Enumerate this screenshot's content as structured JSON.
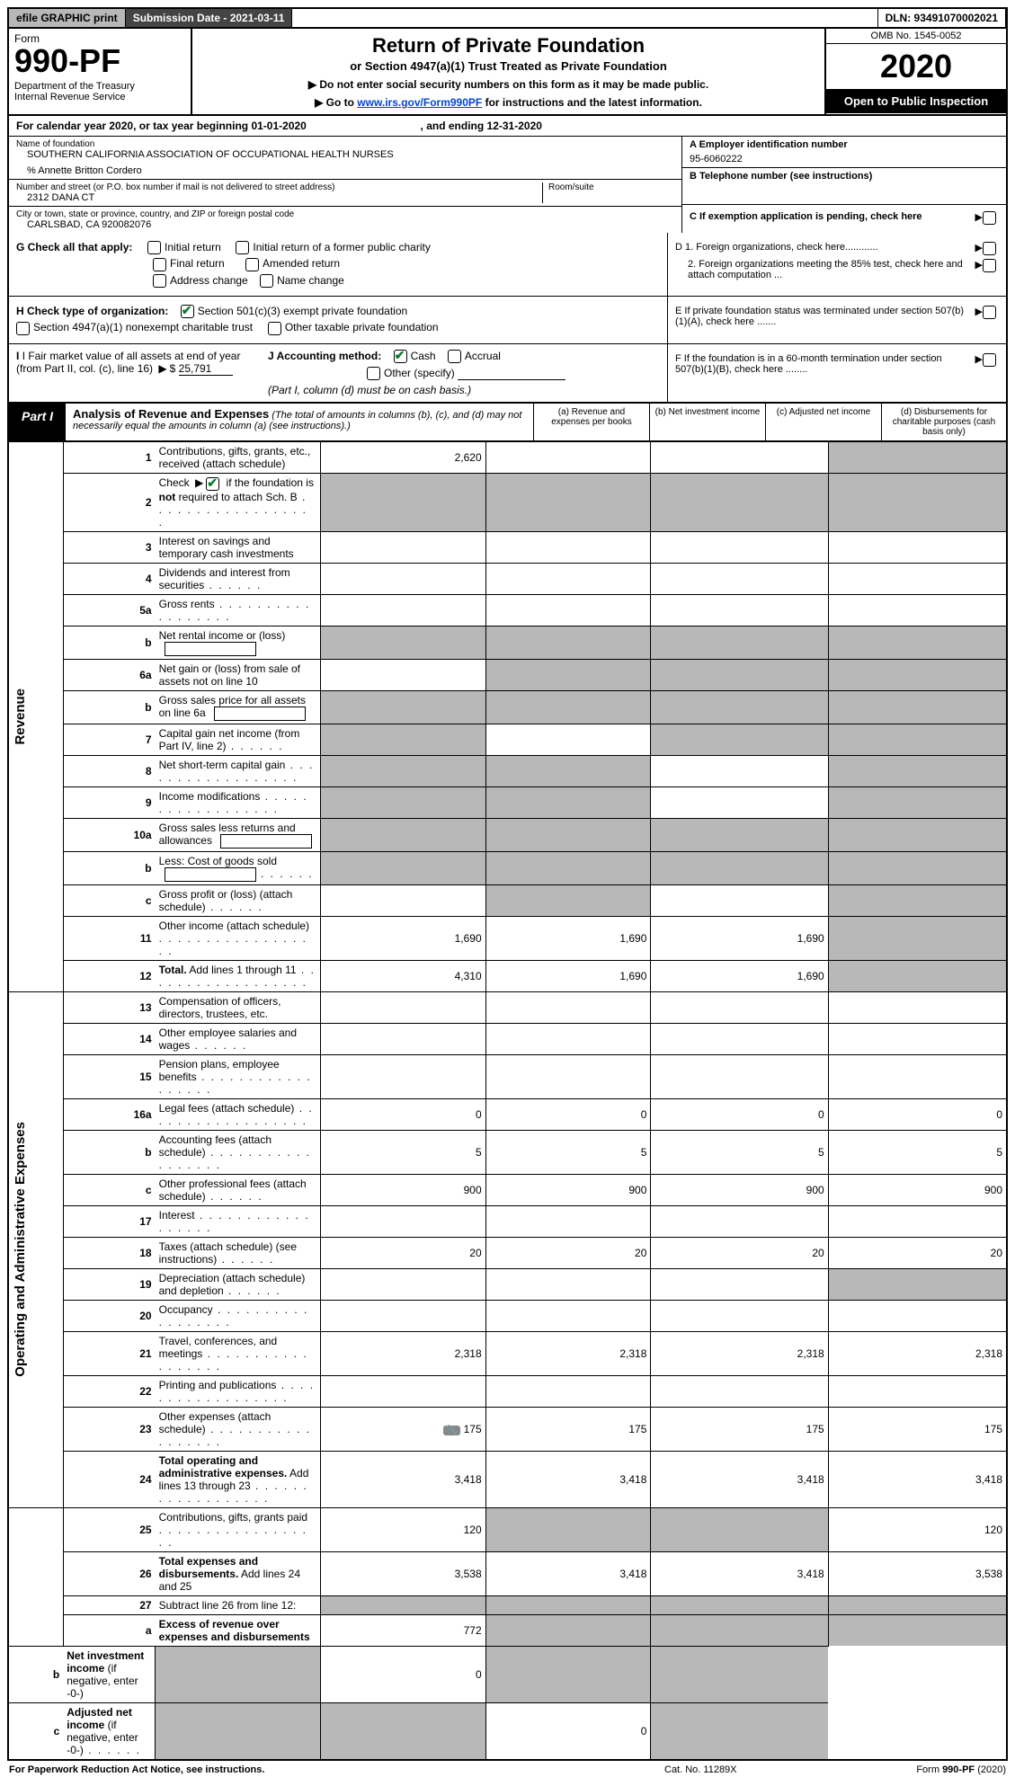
{
  "topbar": {
    "efile": "efile GRAPHIC print",
    "subdate_label": "Submission Date - 2021-03-11",
    "dln": "DLN: 93491070002021"
  },
  "header": {
    "form_word": "Form",
    "form_no": "990-PF",
    "dept": "Department of the Treasury\nInternal Revenue Service",
    "title": "Return of Private Foundation",
    "subtitle": "or Section 4947(a)(1) Trust Treated as Private Foundation",
    "note1": "▶ Do not enter social security numbers on this form as it may be made public.",
    "note2_pre": "▶ Go to ",
    "note2_link": "www.irs.gov/Form990PF",
    "note2_post": " for instructions and the latest information.",
    "omb": "OMB No. 1545-0052",
    "year": "2020",
    "open": "Open to Public Inspection"
  },
  "calyear": {
    "text_pre": "For calendar year 2020, or tax year beginning ",
    "begin": "01-01-2020",
    "text_mid": " , and ending ",
    "end": "12-31-2020"
  },
  "info": {
    "name_label": "Name of foundation",
    "name": "SOUTHERN CALIFORNIA ASSOCIATION OF OCCUPATIONAL HEALTH NURSES",
    "care_of": "% Annette Britton Cordero",
    "street_label": "Number and street (or P.O. box number if mail is not delivered to street address)",
    "street": "2312 DANA CT",
    "room_label": "Room/suite",
    "city_label": "City or town, state or province, country, and ZIP or foreign postal code",
    "city": "CARLSBAD, CA  920082076",
    "a_label": "A Employer identification number",
    "a_value": "95-6060222",
    "b_label": "B Telephone number (see instructions)",
    "c_label": "C If exemption application is pending, check here"
  },
  "g": {
    "label": "G Check all that apply:",
    "initial": "Initial return",
    "initial_former": "Initial return of a former public charity",
    "final": "Final return",
    "amended": "Amended return",
    "address": "Address change",
    "name": "Name change"
  },
  "d": {
    "d1": "D 1. Foreign organizations, check here............",
    "d2": "2. Foreign organizations meeting the 85% test, check here and attach computation ..."
  },
  "h": {
    "label": "H Check type of organization:",
    "opt1": "Section 501(c)(3) exempt private foundation",
    "opt2": "Section 4947(a)(1) nonexempt charitable trust",
    "opt3": "Other taxable private foundation"
  },
  "e": {
    "text": "E  If private foundation status was terminated under section 507(b)(1)(A), check here ......."
  },
  "i": {
    "label": "I Fair market value of all assets at end of year (from Part II, col. (c), line 16)",
    "arrow": "▶$",
    "value": "25,791"
  },
  "j": {
    "label": "J Accounting method:",
    "cash": "Cash",
    "accrual": "Accrual",
    "other": "Other (specify)",
    "note": "(Part I, column (d) must be on cash basis.)"
  },
  "f": {
    "text": "F  If the foundation is in a 60-month termination under section 507(b)(1)(B), check here ........"
  },
  "part1": {
    "tab": "Part I",
    "title": "Analysis of Revenue and Expenses",
    "title_note": "(The total of amounts in columns (b), (c), and (d) may not necessarily equal the amounts in column (a) (see instructions).)",
    "col_a": "(a)   Revenue and expenses per books",
    "col_b": "(b)  Net investment income",
    "col_c": "(c)  Adjusted net income",
    "col_d": "(d)  Disbursements for charitable purposes (cash basis only)"
  },
  "vlabels": {
    "revenue": "Revenue",
    "expenses": "Operating and Administrative Expenses"
  },
  "rows": [
    {
      "n": "1",
      "desc": "Contributions, gifts, grants, etc., received (attach schedule)",
      "a": "2,620",
      "d_shade": true
    },
    {
      "n": "2",
      "desc": "Check ▶ [✔] if the foundation is <b>not</b> required to attach Sch. B",
      "dots": true,
      "allshade": true,
      "checked": true
    },
    {
      "n": "3",
      "desc": "Interest on savings and temporary cash investments"
    },
    {
      "n": "4",
      "desc": "Dividends and interest from securities",
      "dots_short": true
    },
    {
      "n": "5a",
      "desc": "Gross rents",
      "dots": true
    },
    {
      "n": "b",
      "desc": "Net rental income or (loss)",
      "inner": true,
      "allshade": true
    },
    {
      "n": "6a",
      "desc": "Net gain or (loss) from sale of assets not on line 10",
      "bc_shade": true,
      "d_shade": true
    },
    {
      "n": "b",
      "desc": "Gross sales price for all assets on line 6a",
      "inner": true,
      "allshade": true
    },
    {
      "n": "7",
      "desc": "Capital gain net income (from Part IV, line 2)",
      "dots_short": true,
      "a_shade": true,
      "c_shade": true,
      "d_shade": true
    },
    {
      "n": "8",
      "desc": "Net short-term capital gain",
      "dots": true,
      "a_shade": true,
      "b_shade": true,
      "d_shade": true
    },
    {
      "n": "9",
      "desc": "Income modifications",
      "dots": true,
      "a_shade": true,
      "b_shade": true,
      "d_shade": true
    },
    {
      "n": "10a",
      "desc": "Gross sales less returns and allowances",
      "inner": true,
      "allshade": true
    },
    {
      "n": "b",
      "desc": "Less: Cost of goods sold",
      "dots_short": true,
      "inner": true,
      "allshade": true
    },
    {
      "n": "c",
      "desc": "Gross profit or (loss) (attach schedule)",
      "dots_short": true,
      "b_shade": true,
      "d_shade": true
    },
    {
      "n": "11",
      "desc": "Other income (attach schedule)",
      "dots": true,
      "a": "1,690",
      "b": "1,690",
      "c": "1,690",
      "d_shade": true
    },
    {
      "n": "12",
      "desc": "<b>Total.</b> Add lines 1 through 11",
      "dots": true,
      "a": "4,310",
      "b": "1,690",
      "c": "1,690",
      "d_shade": true
    },
    {
      "n": "13",
      "desc": "Compensation of officers, directors, trustees, etc."
    },
    {
      "n": "14",
      "desc": "Other employee salaries and wages",
      "dots_short": true
    },
    {
      "n": "15",
      "desc": "Pension plans, employee benefits",
      "dots": true
    },
    {
      "n": "16a",
      "desc": "Legal fees (attach schedule)",
      "dots": true,
      "a": "0",
      "b": "0",
      "c": "0",
      "d": "0"
    },
    {
      "n": "b",
      "desc": "Accounting fees (attach schedule)",
      "dots": true,
      "a": "5",
      "b": "5",
      "c": "5",
      "d": "5"
    },
    {
      "n": "c",
      "desc": "Other professional fees (attach schedule)",
      "dots_short": true,
      "a": "900",
      "b": "900",
      "c": "900",
      "d": "900"
    },
    {
      "n": "17",
      "desc": "Interest",
      "dots": true
    },
    {
      "n": "18",
      "desc": "Taxes (attach schedule) (see instructions)",
      "dots_short": true,
      "a": "20",
      "b": "20",
      "c": "20",
      "d": "20"
    },
    {
      "n": "19",
      "desc": "Depreciation (attach schedule) and depletion",
      "dots_short": true,
      "d_shade": true
    },
    {
      "n": "20",
      "desc": "Occupancy",
      "dots": true
    },
    {
      "n": "21",
      "desc": "Travel, conferences, and meetings",
      "dots": true,
      "a": "2,318",
      "b": "2,318",
      "c": "2,318",
      "d": "2,318"
    },
    {
      "n": "22",
      "desc": "Printing and publications",
      "dots": true
    },
    {
      "n": "23",
      "desc": "Other expenses (attach schedule)",
      "dots": true,
      "a": "175",
      "b": "175",
      "c": "175",
      "d": "175",
      "icon": true
    },
    {
      "n": "24",
      "desc": "<b>Total operating and administrative expenses.</b> Add lines 13 through 23",
      "dots": true,
      "a": "3,418",
      "b": "3,418",
      "c": "3,418",
      "d": "3,418"
    },
    {
      "n": "25",
      "desc": "Contributions, gifts, grants paid",
      "dots": true,
      "a": "120",
      "b_shade": true,
      "c_shade": true,
      "d": "120"
    },
    {
      "n": "26",
      "desc": "<b>Total expenses and disbursements.</b> Add lines 24 and 25",
      "a": "3,538",
      "b": "3,418",
      "c": "3,418",
      "d": "3,538"
    },
    {
      "n": "27",
      "desc": "Subtract line 26 from line 12:",
      "allshade": true
    },
    {
      "n": "a",
      "desc": "<b>Excess of revenue over expenses and disbursements</b>",
      "a": "772",
      "b_shade": true,
      "c_shade": true,
      "d_shade": true
    },
    {
      "n": "b",
      "desc": "<b>Net investment income</b> (if negative, enter -0-)",
      "a_shade": true,
      "b": "0",
      "c_shade": true,
      "d_shade": true
    },
    {
      "n": "c",
      "desc": "<b>Adjusted net income</b> (if negative, enter -0-)",
      "dots_short": true,
      "a_shade": true,
      "b_shade": true,
      "c": "0",
      "d_shade": true
    }
  ],
  "footer": {
    "left": "For Paperwork Reduction Act Notice, see instructions.",
    "mid": "Cat. No. 11289X",
    "right": "Form 990-PF (2020)"
  }
}
